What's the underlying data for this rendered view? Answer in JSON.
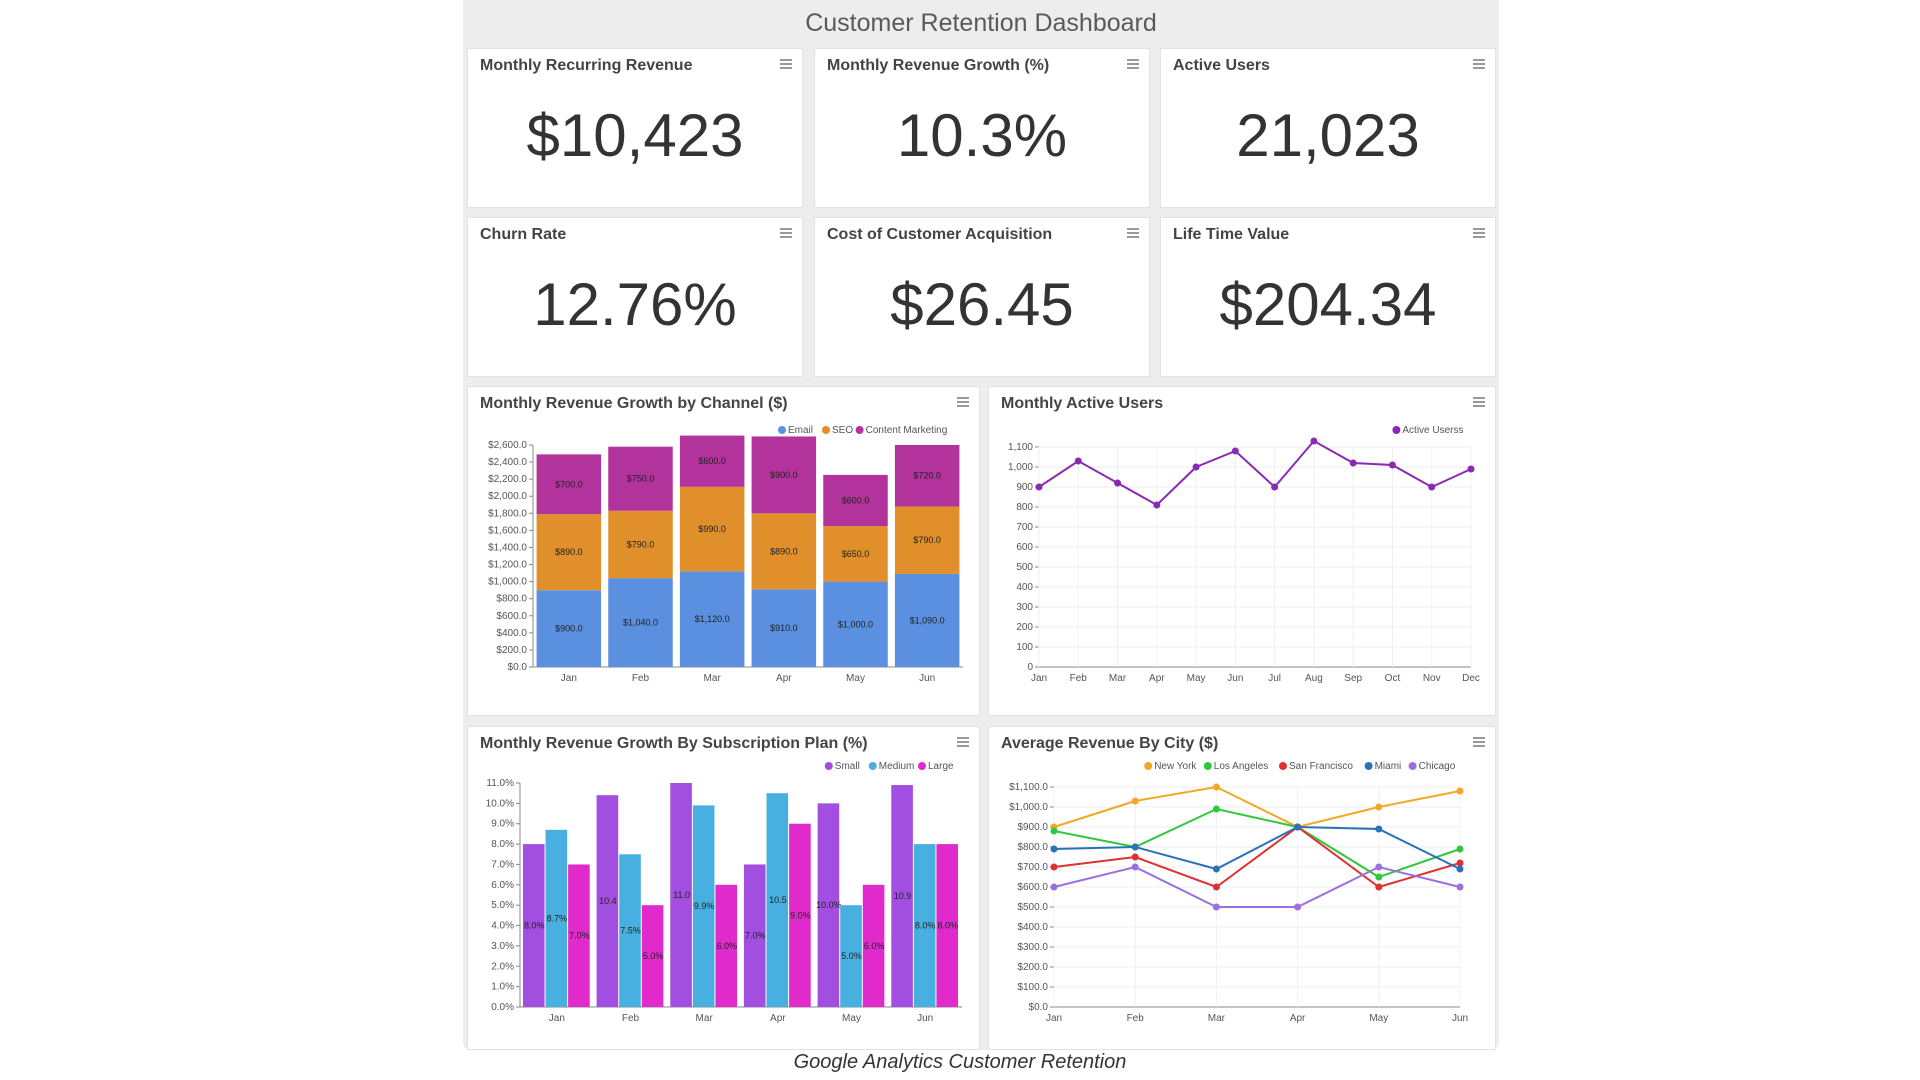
{
  "dashboard_title": "Customer Retention Dashboard",
  "caption": "Google Analytics Customer Retention",
  "kpis": [
    {
      "title": "Monthly Recurring Revenue",
      "value": "$10,423"
    },
    {
      "title": "Monthly Revenue Growth (%)",
      "value": "10.3%"
    },
    {
      "title": "Active Users",
      "value": "21,023"
    },
    {
      "title": "Churn Rate",
      "value": "12.76%"
    },
    {
      "title": "Cost of Customer Acquisition",
      "value": "$26.45"
    },
    {
      "title": "Life Time Value",
      "value": "$204.34"
    }
  ],
  "colors": {
    "email": "#5b8fe0",
    "seo": "#e08f2a",
    "content": "#b3339c",
    "active_users": "#8a2ab3",
    "small": "#a24ee0",
    "medium": "#47b0e0",
    "large": "#e02acb",
    "new_york": "#f5a623",
    "los_angeles": "#2ec83c",
    "san_francisco": "#e03030",
    "miami": "#2a72b8",
    "chicago": "#9b6fe0"
  },
  "chart_data": [
    {
      "type": "bar",
      "stacked": true,
      "title": "Monthly Revenue Growth by Channel ($)",
      "categories": [
        "Jan",
        "Feb",
        "Mar",
        "Apr",
        "May",
        "Jun"
      ],
      "series": [
        {
          "name": "Email",
          "values": [
            900,
            1040,
            1120,
            910,
            1000,
            1090
          ],
          "labels": [
            "$900.0",
            "$1,040.0",
            "$1,120.0",
            "$910.0",
            "$1,000.0",
            "$1,090.0"
          ]
        },
        {
          "name": "SEO",
          "values": [
            890,
            790,
            990,
            890,
            650,
            790
          ],
          "labels": [
            "$890.0",
            "$790.0",
            "$990.0",
            "$890.0",
            "$650.0",
            "$790.0"
          ]
        },
        {
          "name": "Content Marketing",
          "values": [
            700,
            750,
            600,
            900,
            600,
            720
          ],
          "labels": [
            "$700.0",
            "$750.0",
            "$600.0",
            "$900.0",
            "$600.0",
            "$720.0"
          ]
        }
      ],
      "ylim": [
        0,
        2600
      ],
      "yticks": [
        "$0.0",
        "$200.0",
        "$400.0",
        "$600.0",
        "$800.0",
        "$1,000.0",
        "$1,200.0",
        "$1,400.0",
        "$1,600.0",
        "$1,800.0",
        "$2,000.0",
        "$2,200.0",
        "$2,400.0",
        "$2,600.0"
      ],
      "legend": "top-right"
    },
    {
      "type": "line",
      "title": "Monthly Active Users",
      "categories": [
        "Jan",
        "Feb",
        "Mar",
        "Apr",
        "May",
        "Jun",
        "Jul",
        "Aug",
        "Sep",
        "Oct",
        "Nov",
        "Dec"
      ],
      "series": [
        {
          "name": "Active Userss",
          "values": [
            900,
            1030,
            920,
            810,
            1000,
            1080,
            900,
            1130,
            1020,
            1010,
            900,
            990
          ]
        }
      ],
      "ylim": [
        0,
        1100
      ],
      "yticks": [
        "0",
        "100",
        "200",
        "300",
        "400",
        "500",
        "600",
        "700",
        "800",
        "900",
        "1,000",
        "1,100"
      ],
      "legend": "top-right"
    },
    {
      "type": "bar",
      "title": "Monthly Revenue Growth By Subscription Plan (%)",
      "categories": [
        "Jan",
        "Feb",
        "Mar",
        "Apr",
        "May",
        "Jun"
      ],
      "series": [
        {
          "name": "Small",
          "values": [
            8.0,
            10.4,
            11.0,
            7.0,
            10.0,
            10.9
          ],
          "labels": [
            "8.0%",
            "10.4",
            "11.0",
            "7.0%",
            "10.0%",
            "10.9"
          ]
        },
        {
          "name": "Medium",
          "values": [
            8.7,
            7.5,
            9.9,
            10.5,
            5.0,
            8.0
          ],
          "labels": [
            "8.7%",
            "7.5%",
            "9.9%",
            "10.5",
            "5.0%",
            "8.0%"
          ]
        },
        {
          "name": "Large",
          "values": [
            7.0,
            5.0,
            6.0,
            9.0,
            6.0,
            8.0
          ],
          "labels": [
            "7.0%",
            "5.0%",
            "6.0%",
            "9.0%",
            "6.0%",
            "8.0%"
          ]
        }
      ],
      "ylim": [
        0,
        11
      ],
      "yticks": [
        "0.0%",
        "1.0%",
        "2.0%",
        "3.0%",
        "4.0%",
        "5.0%",
        "6.0%",
        "7.0%",
        "8.0%",
        "9.0%",
        "10.0%",
        "11.0%"
      ],
      "legend": "top-right"
    },
    {
      "type": "line",
      "title": "Average Revenue By City ($)",
      "categories": [
        "Jan",
        "Feb",
        "Mar",
        "Apr",
        "May",
        "Jun"
      ],
      "series": [
        {
          "name": "New York",
          "values": [
            900,
            1030,
            1100,
            900,
            1000,
            1080
          ]
        },
        {
          "name": "Los Angeles",
          "values": [
            880,
            800,
            990,
            900,
            650,
            790
          ]
        },
        {
          "name": "San Francisco",
          "values": [
            700,
            750,
            600,
            900,
            600,
            720
          ]
        },
        {
          "name": "Miami",
          "values": [
            790,
            800,
            690,
            900,
            890,
            690
          ]
        },
        {
          "name": "Chicago",
          "values": [
            600,
            700,
            500,
            500,
            700,
            600
          ]
        }
      ],
      "ylim": [
        0,
        1100
      ],
      "yticks": [
        "$0.0",
        "$100.0",
        "$200.0",
        "$300.0",
        "$400.0",
        "$500.0",
        "$600.0",
        "$700.0",
        "$800.0",
        "$900.0",
        "$1,000.0",
        "$1,100.0"
      ],
      "legend": "top-right"
    }
  ]
}
